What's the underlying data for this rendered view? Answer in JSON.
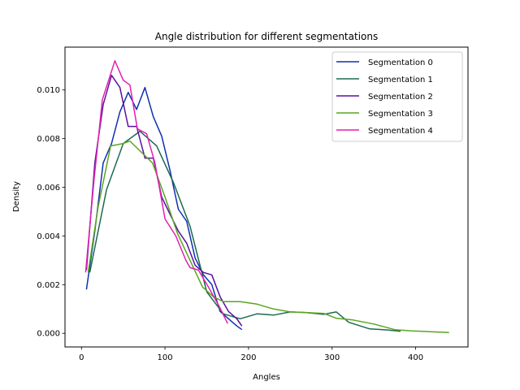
{
  "chart_data": {
    "type": "line",
    "title": "Angle distribution for different segmentations",
    "xlabel": "Angles",
    "ylabel": "Density",
    "xlim": [
      -19.7,
      462.7
    ],
    "ylim": [
      -0.00056,
      0.01176
    ],
    "xticks": [
      0,
      100,
      200,
      300,
      400
    ],
    "xtick_labels": [
      "0",
      "100",
      "200",
      "300",
      "400"
    ],
    "yticks": [
      0.0,
      0.002,
      0.004,
      0.006,
      0.008,
      0.01
    ],
    "ytick_labels": [
      "0.000",
      "0.002",
      "0.004",
      "0.006",
      "0.008",
      "0.010"
    ],
    "grid": false,
    "legend_position": "top-right",
    "series": [
      {
        "name": "Segmentation 0",
        "color": "#1030b0",
        "x": [
          6,
          16,
          26,
          36,
          46,
          56,
          66,
          76,
          86,
          96,
          106,
          116,
          126,
          136,
          146,
          156,
          166,
          176,
          186,
          192
        ],
        "y": [
          0.0018,
          0.0042,
          0.007,
          0.0078,
          0.0091,
          0.0099,
          0.0092,
          0.0101,
          0.0089,
          0.0081,
          0.0067,
          0.0051,
          0.0046,
          0.0031,
          0.0024,
          0.002,
          0.0009,
          0.0006,
          0.0003,
          0.00015
        ]
      },
      {
        "name": "Segmentation 1",
        "color": "#1b6b50",
        "x": [
          10,
          30,
          50,
          70,
          90,
          110,
          130,
          150,
          170,
          190,
          210,
          230,
          250,
          270,
          290,
          305,
          320,
          345,
          365,
          382
        ],
        "y": [
          0.0025,
          0.0059,
          0.0078,
          0.0083,
          0.0077,
          0.0062,
          0.0044,
          0.0017,
          0.0008,
          0.0006,
          0.0008,
          0.00075,
          0.00088,
          0.00085,
          0.00078,
          0.00088,
          0.00045,
          0.00018,
          0.00014,
          8e-05
        ]
      },
      {
        "name": "Segmentation 2",
        "color": "#5a0fa0",
        "x": [
          6,
          16,
          26,
          36,
          46,
          56,
          66,
          76,
          86,
          96,
          106,
          116,
          126,
          136,
          146,
          156,
          166,
          176,
          186,
          192
        ],
        "y": [
          0.0026,
          0.007,
          0.0094,
          0.0106,
          0.0101,
          0.0085,
          0.0085,
          0.0072,
          0.0072,
          0.0056,
          0.0049,
          0.0042,
          0.0037,
          0.0028,
          0.0025,
          0.0024,
          0.0015,
          0.0009,
          0.0006,
          0.0003
        ]
      },
      {
        "name": "Segmentation 3",
        "color": "#5aa51e",
        "x": [
          8,
          20,
          35,
          50,
          58,
          70,
          85,
          100,
          115,
          130,
          145,
          158,
          170,
          190,
          210,
          230,
          250,
          270,
          290,
          305,
          325,
          350,
          375,
          395,
          420,
          440
        ],
        "y": [
          0.0025,
          0.0052,
          0.0077,
          0.0078,
          0.0079,
          0.0075,
          0.007,
          0.0056,
          0.0041,
          0.003,
          0.0019,
          0.0015,
          0.0013,
          0.0013,
          0.0012,
          0.001,
          0.00088,
          0.00085,
          0.00082,
          0.00062,
          0.00055,
          0.00038,
          0.00015,
          0.0001,
          6e-05,
          3e-05
        ]
      },
      {
        "name": "Segmentation 4",
        "color": "#e020b0",
        "x": [
          5,
          15,
          25,
          40,
          50,
          58,
          67,
          78,
          88,
          100,
          113,
          125,
          130,
          140,
          152,
          165,
          175
        ],
        "y": [
          0.0025,
          0.0063,
          0.0096,
          0.0112,
          0.0104,
          0.0102,
          0.0084,
          0.0082,
          0.007,
          0.0047,
          0.004,
          0.003,
          0.0027,
          0.0026,
          0.0019,
          0.0011,
          0.0004
        ]
      }
    ]
  }
}
